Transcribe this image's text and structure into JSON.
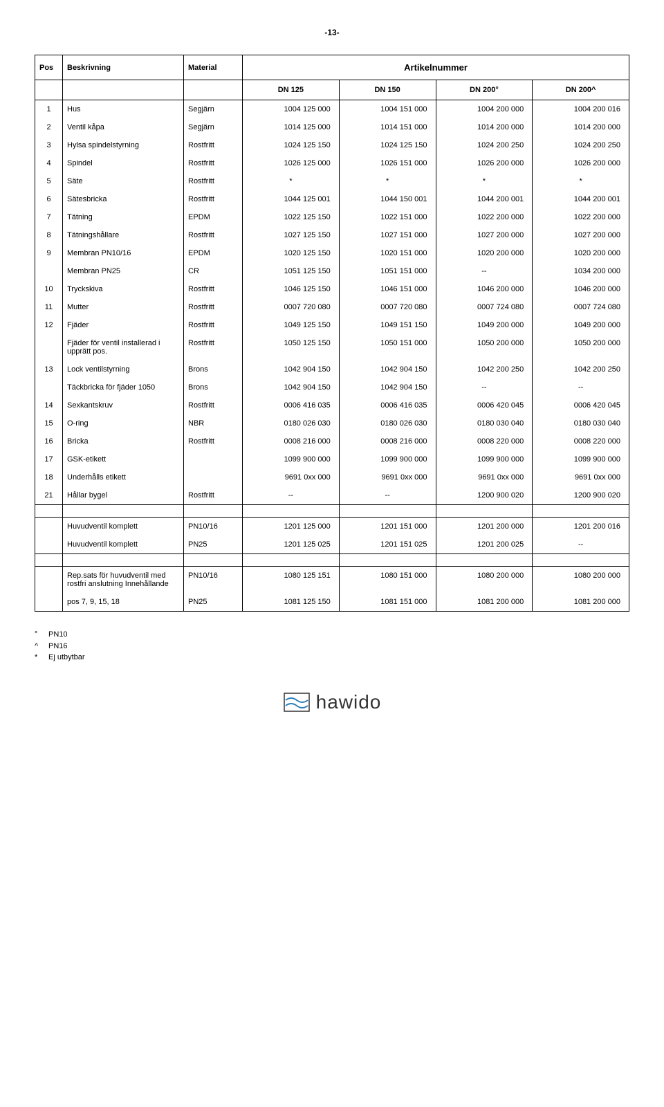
{
  "page_number": "-13-",
  "headers": {
    "pos": "Pos",
    "beskrivning": "Beskrivning",
    "material": "Material",
    "artikelnummer": "Artikelnummer",
    "dn125": "DN 125",
    "dn150": "DN 150",
    "dn200a": "DN 200°",
    "dn200b": "DN 200^"
  },
  "rows": [
    {
      "pos": "1",
      "desc": "Hus",
      "mat": "Segjärn",
      "c1": "1004 125 000",
      "c2": "1004 151 000",
      "c3": "1004 200 000",
      "c4": "1004 200 016"
    },
    {
      "pos": "2",
      "desc": "Ventil kåpa",
      "mat": "Segjärn",
      "c1": "1014 125 000",
      "c2": "1014 151 000",
      "c3": "1014 200 000",
      "c4": "1014 200 000"
    },
    {
      "pos": "3",
      "desc": "Hylsa spindelstyrning",
      "mat": "Rostfritt",
      "c1": "1024 125 150",
      "c2": "1024 125 150",
      "c3": "1024 200 250",
      "c4": "1024 200 250"
    },
    {
      "pos": "4",
      "desc": "Spindel",
      "mat": "Rostfritt",
      "c1": "1026 125 000",
      "c2": "1026 151 000",
      "c3": "1026 200 000",
      "c4": "1026 200 000"
    },
    {
      "pos": "5",
      "desc": "Säte",
      "mat": "Rostfritt",
      "c1": "*",
      "c2": "*",
      "c3": "*",
      "c4": "*"
    },
    {
      "pos": "6",
      "desc": "Sätesbricka",
      "mat": "Rostfritt",
      "c1": "1044 125 001",
      "c2": "1044 150 001",
      "c3": "1044 200 001",
      "c4": "1044 200 001"
    },
    {
      "pos": "7",
      "desc": "Tätning",
      "mat": "EPDM",
      "c1": "1022 125 150",
      "c2": "1022 151 000",
      "c3": "1022 200 000",
      "c4": "1022 200 000"
    },
    {
      "pos": "8",
      "desc": "Tätningshållare",
      "mat": "Rostfritt",
      "c1": "1027 125 150",
      "c2": "1027 151 000",
      "c3": "1027 200 000",
      "c4": "1027 200 000"
    },
    {
      "pos": "9",
      "desc": "Membran PN10/16",
      "mat": "EPDM",
      "c1": "1020 125 150",
      "c2": "1020 151 000",
      "c3": "1020 200 000",
      "c4": "1020 200 000"
    },
    {
      "pos": "",
      "desc": "Membran PN25",
      "mat": "CR",
      "c1": "1051 125 150",
      "c2": "1051 151 000",
      "c3": "--",
      "c4": "1034 200 000"
    },
    {
      "pos": "10",
      "desc": "Tryckskiva",
      "mat": "Rostfritt",
      "c1": "1046 125 150",
      "c2": "1046 151 000",
      "c3": "1046 200 000",
      "c4": "1046 200 000"
    },
    {
      "pos": "11",
      "desc": "Mutter",
      "mat": "Rostfritt",
      "c1": "0007 720 080",
      "c2": "0007 720 080",
      "c3": "0007 724 080",
      "c4": "0007 724 080"
    },
    {
      "pos": "12",
      "desc": "Fjäder",
      "mat": "Rostfritt",
      "c1": "1049 125 150",
      "c2": "1049 151 150",
      "c3": "1049 200 000",
      "c4": "1049 200 000"
    },
    {
      "pos": "",
      "desc": "Fjäder för ventil installerad i upprätt pos.",
      "mat": "Rostfritt",
      "c1": "1050 125 150",
      "c2": "1050 151 000",
      "c3": "1050 200 000",
      "c4": "1050 200 000"
    },
    {
      "pos": "13",
      "desc": "Lock ventilstyrning",
      "mat": "Brons",
      "c1": "1042 904 150",
      "c2": "1042 904 150",
      "c3": "1042 200 250",
      "c4": "1042 200 250"
    },
    {
      "pos": "",
      "desc": "Täckbricka för fjäder 1050",
      "mat": "Brons",
      "c1": "1042 904 150",
      "c2": "1042 904 150",
      "c3": "--",
      "c4": "--"
    },
    {
      "pos": "14",
      "desc": "Sexkantskruv",
      "mat": "Rostfritt",
      "c1": "0006 416 035",
      "c2": "0006 416 035",
      "c3": "0006 420 045",
      "c4": "0006 420 045"
    },
    {
      "pos": "15",
      "desc": "O-ring",
      "mat": "NBR",
      "c1": "0180 026 030",
      "c2": "0180 026 030",
      "c3": "0180 030 040",
      "c4": "0180 030 040"
    },
    {
      "pos": "16",
      "desc": "Bricka",
      "mat": "Rostfritt",
      "c1": "0008 216 000",
      "c2": "0008 216 000",
      "c3": "0008 220 000",
      "c4": "0008 220 000"
    },
    {
      "pos": "17",
      "desc": "GSK-etikett",
      "mat": "",
      "c1": "1099 900 000",
      "c2": "1099 900 000",
      "c3": "1099 900 000",
      "c4": "1099 900 000"
    },
    {
      "pos": "18",
      "desc": "Underhålls etikett",
      "mat": "",
      "c1": "9691 0xx 000",
      "c2": "9691 0xx 000",
      "c3": "9691 0xx 000",
      "c4": "9691 0xx 000"
    },
    {
      "pos": "21",
      "desc": "Hållar bygel",
      "mat": "Rostfritt",
      "c1": "--",
      "c2": "--",
      "c3": "1200 900 020",
      "c4": "1200 900 020"
    }
  ],
  "block2": [
    {
      "pos": "",
      "desc": "Huvudventil komplett",
      "mat": "PN10/16",
      "c1": "1201 125 000",
      "c2": "1201 151 000",
      "c3": "1201 200 000",
      "c4": "1201 200 016"
    },
    {
      "pos": "",
      "desc": "Huvudventil komplett",
      "mat": "PN25",
      "c1": "1201 125 025",
      "c2": "1201 151 025",
      "c3": "1201 200 025",
      "c4": "--"
    }
  ],
  "block3": [
    {
      "pos": "",
      "desc": "Rep.sats för huvudventil med rostfri anslutning Innehållande",
      "mat": "PN10/16",
      "c1": "1080 125 151",
      "c2": "1080 151 000",
      "c3": "1080 200 000",
      "c4": "1080 200 000"
    },
    {
      "pos": "",
      "desc": "pos 7, 9, 15, 18",
      "mat": "PN25",
      "c1": "1081 125 150",
      "c2": "1081 151 000",
      "c3": "1081 200 000",
      "c4": "1081 200 000"
    }
  ],
  "footnotes": [
    {
      "sym": "°",
      "text": "PN10"
    },
    {
      "sym": "^",
      "text": "PN16"
    },
    {
      "sym": "*",
      "text": "Ej utbytbar"
    }
  ],
  "logo_text": "hawido",
  "colors": {
    "text": "#000000",
    "border": "#000000",
    "bg": "#ffffff",
    "logo_accent": "#2a7db8"
  }
}
